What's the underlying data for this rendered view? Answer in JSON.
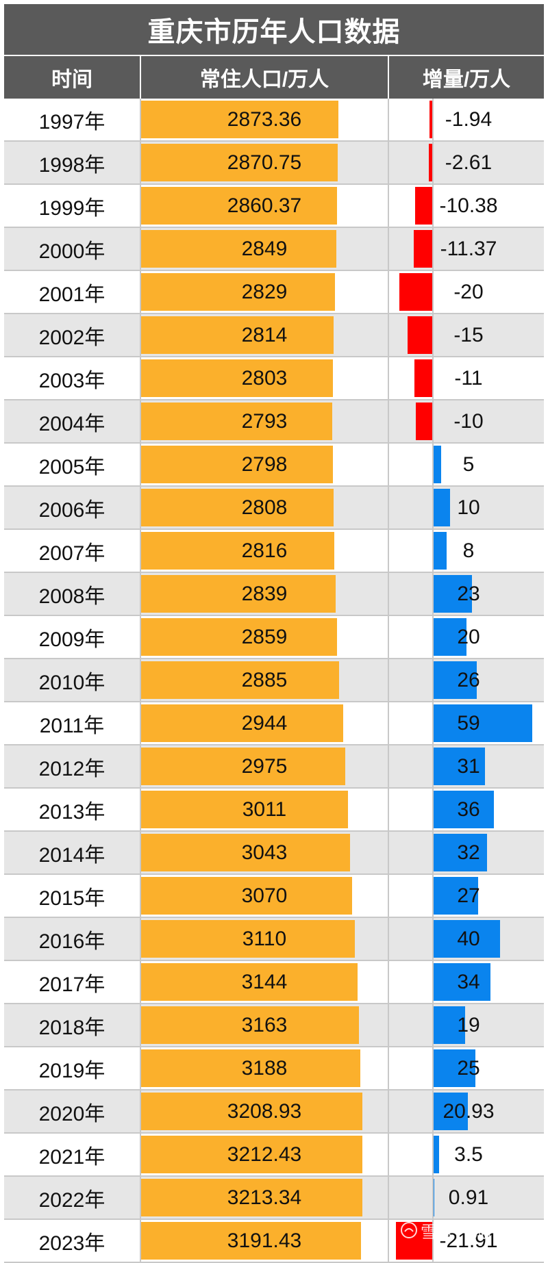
{
  "title": "重庆市历年人口数据",
  "headers": {
    "time": "时间",
    "population": "常住人口/万人",
    "increase": "增量/万人"
  },
  "colors": {
    "population_bar": "#fbb02c",
    "positive": "#0a84ee",
    "negative": "#ff0000",
    "header_bg": "#5a5a5a"
  },
  "watermark": {
    "text": "雪球：城市财经",
    "icon": "xueqiu-logo-icon"
  },
  "chart_data": {
    "type": "table",
    "columns": [
      "时间",
      "常住人口/万人",
      "增量/万人"
    ],
    "rows": [
      {
        "year": "1997年",
        "population": "2873.36",
        "increase": "-1.94"
      },
      {
        "year": "1998年",
        "population": "2870.75",
        "increase": "-2.61"
      },
      {
        "year": "1999年",
        "population": "2860.37",
        "increase": "-10.38"
      },
      {
        "year": "2000年",
        "population": "2849",
        "increase": "-11.37"
      },
      {
        "year": "2001年",
        "population": "2829",
        "increase": "-20"
      },
      {
        "year": "2002年",
        "population": "2814",
        "increase": "-15"
      },
      {
        "year": "2003年",
        "population": "2803",
        "increase": "-11"
      },
      {
        "year": "2004年",
        "population": "2793",
        "increase": "-10"
      },
      {
        "year": "2005年",
        "population": "2798",
        "increase": "5"
      },
      {
        "year": "2006年",
        "population": "2808",
        "increase": "10"
      },
      {
        "year": "2007年",
        "population": "2816",
        "increase": "8"
      },
      {
        "year": "2008年",
        "population": "2839",
        "increase": "23"
      },
      {
        "year": "2009年",
        "population": "2859",
        "increase": "20"
      },
      {
        "year": "2010年",
        "population": "2885",
        "increase": "26"
      },
      {
        "year": "2011年",
        "population": "2944",
        "increase": "59"
      },
      {
        "year": "2012年",
        "population": "2975",
        "increase": "31"
      },
      {
        "year": "2013年",
        "population": "3011",
        "increase": "36"
      },
      {
        "year": "2014年",
        "population": "3043",
        "increase": "32"
      },
      {
        "year": "2015年",
        "population": "3070",
        "increase": "27"
      },
      {
        "year": "2016年",
        "population": "3110",
        "increase": "40"
      },
      {
        "year": "2017年",
        "population": "3144",
        "increase": "34"
      },
      {
        "year": "2018年",
        "population": "3163",
        "increase": "19"
      },
      {
        "year": "2019年",
        "population": "3188",
        "increase": "25"
      },
      {
        "year": "2020年",
        "population": "3208.93",
        "increase": "20.93"
      },
      {
        "year": "2021年",
        "population": "3212.43",
        "increase": "3.5"
      },
      {
        "year": "2022年",
        "population": "3213.34",
        "increase": "0.91"
      },
      {
        "year": "2023年",
        "population": "3191.43",
        "increase": "-21.91"
      }
    ]
  }
}
